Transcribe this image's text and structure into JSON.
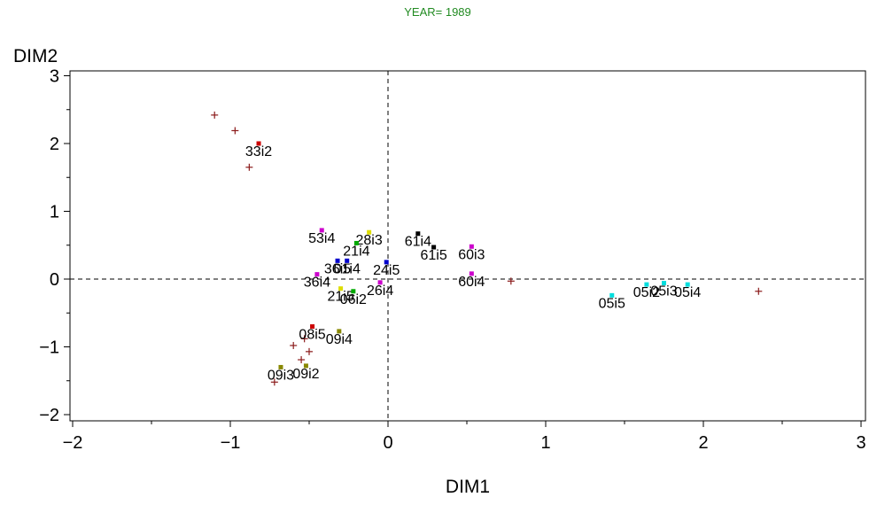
{
  "chart_data": {
    "type": "scatter",
    "title": "YEAR= 1989",
    "xlabel": "DIM1",
    "ylabel": "DIM2",
    "xlim": [
      -2,
      3
    ],
    "ylim": [
      -2,
      3
    ],
    "x_ticks": [
      {
        "value": -2,
        "label": "−2"
      },
      {
        "value": -1,
        "label": "−1"
      },
      {
        "value": 0,
        "label": "0"
      },
      {
        "value": 1,
        "label": "1"
      },
      {
        "value": 2,
        "label": "2"
      },
      {
        "value": 3,
        "label": "3"
      }
    ],
    "y_ticks": [
      {
        "value": -2,
        "label": "−2"
      },
      {
        "value": -1,
        "label": "−1"
      },
      {
        "value": 0,
        "label": "0"
      },
      {
        "value": 1,
        "label": "1"
      },
      {
        "value": 2,
        "label": "2"
      },
      {
        "value": 3,
        "label": "3"
      }
    ],
    "reference_lines": {
      "x": 0,
      "y": 0,
      "style": "dashed"
    },
    "colors": {
      "title": "#228b22",
      "plus": "#8b1a1a",
      "axis": "#000000"
    },
    "plus_points": [
      {
        "x": -1.1,
        "y": 2.42
      },
      {
        "x": -0.97,
        "y": 2.19
      },
      {
        "x": -0.88,
        "y": 1.65
      },
      {
        "x": 0.78,
        "y": -0.03
      },
      {
        "x": 2.35,
        "y": -0.18
      },
      {
        "x": -0.6,
        "y": -0.98
      },
      {
        "x": -0.53,
        "y": -0.88
      },
      {
        "x": -0.5,
        "y": -1.07
      },
      {
        "x": -0.55,
        "y": -1.19
      },
      {
        "x": -0.72,
        "y": -1.52
      }
    ],
    "labeled_points": [
      {
        "label": "33i2",
        "x": -0.82,
        "y": 2.0,
        "color": "#cc0000"
      },
      {
        "label": "53i4",
        "x": -0.42,
        "y": 0.72,
        "color": "#cc00cc"
      },
      {
        "label": "28i3",
        "x": -0.12,
        "y": 0.69,
        "color": "#dddd00"
      },
      {
        "label": "21i4",
        "x": -0.2,
        "y": 0.53,
        "color": "#00aa00"
      },
      {
        "label": "61i4",
        "x": 0.19,
        "y": 0.67,
        "color": "#000000"
      },
      {
        "label": "61i5",
        "x": 0.29,
        "y": 0.47,
        "color": "#000000"
      },
      {
        "label": "60i3",
        "x": 0.53,
        "y": 0.48,
        "color": "#cc00cc"
      },
      {
        "label": "60i4",
        "x": 0.53,
        "y": 0.08,
        "color": "#cc00cc"
      },
      {
        "label": "24i5",
        "x": -0.01,
        "y": 0.25,
        "color": "#0000cc"
      },
      {
        "label": "01i4",
        "x": -0.26,
        "y": 0.27,
        "color": "#0000cc"
      },
      {
        "label": "36i5",
        "x": -0.32,
        "y": 0.27,
        "color": "#0000cc"
      },
      {
        "label": "36i4",
        "x": -0.45,
        "y": 0.07,
        "color": "#cc00cc"
      },
      {
        "label": "26i4",
        "x": -0.05,
        "y": -0.05,
        "color": "#cc00cc"
      },
      {
        "label": "21i5",
        "x": -0.3,
        "y": -0.14,
        "color": "#dddd00"
      },
      {
        "label": "06i2",
        "x": -0.22,
        "y": -0.18,
        "color": "#00aa00"
      },
      {
        "label": "05i5",
        "x": 1.42,
        "y": -0.24,
        "color": "#00dddd"
      },
      {
        "label": "05i2",
        "x": 1.64,
        "y": -0.08,
        "color": "#00dddd"
      },
      {
        "label": "05i3",
        "x": 1.75,
        "y": -0.06,
        "color": "#00dddd"
      },
      {
        "label": "05i4",
        "x": 1.9,
        "y": -0.08,
        "color": "#00dddd"
      },
      {
        "label": "08i5",
        "x": -0.48,
        "y": -0.7,
        "color": "#cc0000"
      },
      {
        "label": "09i4",
        "x": -0.31,
        "y": -0.77,
        "color": "#888800"
      },
      {
        "label": "09i3",
        "x": -0.68,
        "y": -1.3,
        "color": "#888800"
      },
      {
        "label": "09i2",
        "x": -0.52,
        "y": -1.28,
        "color": "#888800"
      }
    ]
  }
}
